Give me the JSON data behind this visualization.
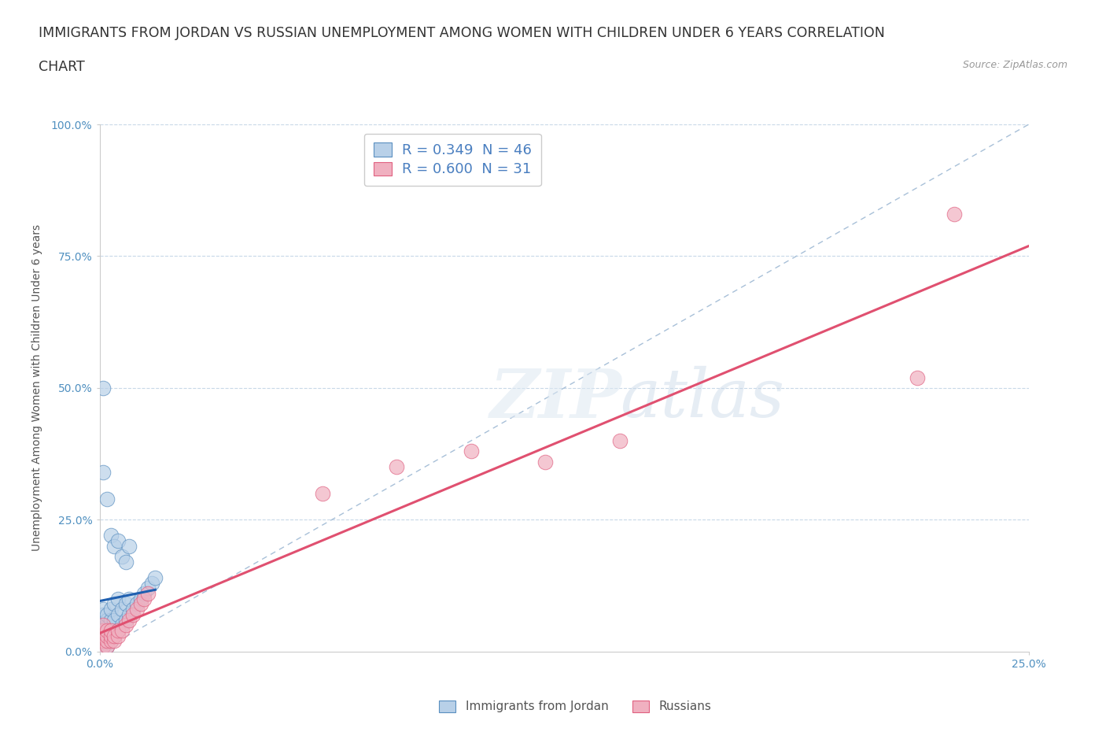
{
  "title_line1": "IMMIGRANTS FROM JORDAN VS RUSSIAN UNEMPLOYMENT AMONG WOMEN WITH CHILDREN UNDER 6 YEARS CORRELATION",
  "title_line2": "CHART",
  "source": "Source: ZipAtlas.com",
  "ylabel": "Unemployment Among Women with Children Under 6 years",
  "legend_entries": [
    {
      "label": "R = 0.349  N = 46",
      "color": "#b8d0e8"
    },
    {
      "label": "R = 0.600  N = 31",
      "color": "#f0b0c0"
    }
  ],
  "legend_label1": "Immigrants from Jordan",
  "legend_label2": "Russians",
  "jordan_color": "#b8d0e8",
  "russian_color": "#f0b0c0",
  "jordan_edge": "#5a8fc0",
  "russian_edge": "#e06080",
  "trend_jordan_color": "#2060b0",
  "trend_russian_color": "#e05070",
  "diag_color": "#a8c0d8",
  "grid_color": "#c8d8e8",
  "xlim": [
    0,
    0.25
  ],
  "ylim": [
    0,
    1.0
  ],
  "jordan_x": [
    0.001,
    0.001,
    0.001,
    0.001,
    0.001,
    0.001,
    0.001,
    0.001,
    0.002,
    0.002,
    0.002,
    0.002,
    0.002,
    0.002,
    0.003,
    0.003,
    0.003,
    0.003,
    0.004,
    0.004,
    0.004,
    0.005,
    0.005,
    0.005,
    0.006,
    0.006,
    0.007,
    0.007,
    0.008,
    0.008,
    0.009,
    0.01,
    0.011,
    0.012,
    0.013,
    0.014,
    0.015,
    0.001,
    0.002,
    0.003,
    0.004,
    0.005,
    0.006,
    0.007,
    0.008,
    0.001
  ],
  "jordan_y": [
    0.01,
    0.02,
    0.03,
    0.04,
    0.05,
    0.06,
    0.07,
    0.08,
    0.01,
    0.02,
    0.03,
    0.05,
    0.06,
    0.07,
    0.02,
    0.04,
    0.06,
    0.08,
    0.03,
    0.06,
    0.09,
    0.04,
    0.07,
    0.1,
    0.05,
    0.08,
    0.06,
    0.09,
    0.07,
    0.1,
    0.08,
    0.09,
    0.1,
    0.11,
    0.12,
    0.13,
    0.14,
    0.34,
    0.29,
    0.22,
    0.2,
    0.21,
    0.18,
    0.17,
    0.2,
    0.5
  ],
  "russian_x": [
    0.001,
    0.001,
    0.001,
    0.001,
    0.001,
    0.002,
    0.002,
    0.002,
    0.002,
    0.003,
    0.003,
    0.003,
    0.004,
    0.004,
    0.005,
    0.005,
    0.006,
    0.007,
    0.008,
    0.009,
    0.01,
    0.011,
    0.012,
    0.013,
    0.06,
    0.08,
    0.1,
    0.12,
    0.14,
    0.22,
    0.23
  ],
  "russian_y": [
    0.01,
    0.02,
    0.03,
    0.04,
    0.05,
    0.01,
    0.02,
    0.03,
    0.04,
    0.02,
    0.03,
    0.04,
    0.02,
    0.03,
    0.03,
    0.04,
    0.04,
    0.05,
    0.06,
    0.07,
    0.08,
    0.09,
    0.1,
    0.11,
    0.3,
    0.35,
    0.38,
    0.36,
    0.4,
    0.52,
    0.83
  ],
  "background_color": "#ffffff",
  "title_fontsize": 12.5,
  "source_fontsize": 9,
  "axis_label_fontsize": 10,
  "tick_fontsize": 10
}
